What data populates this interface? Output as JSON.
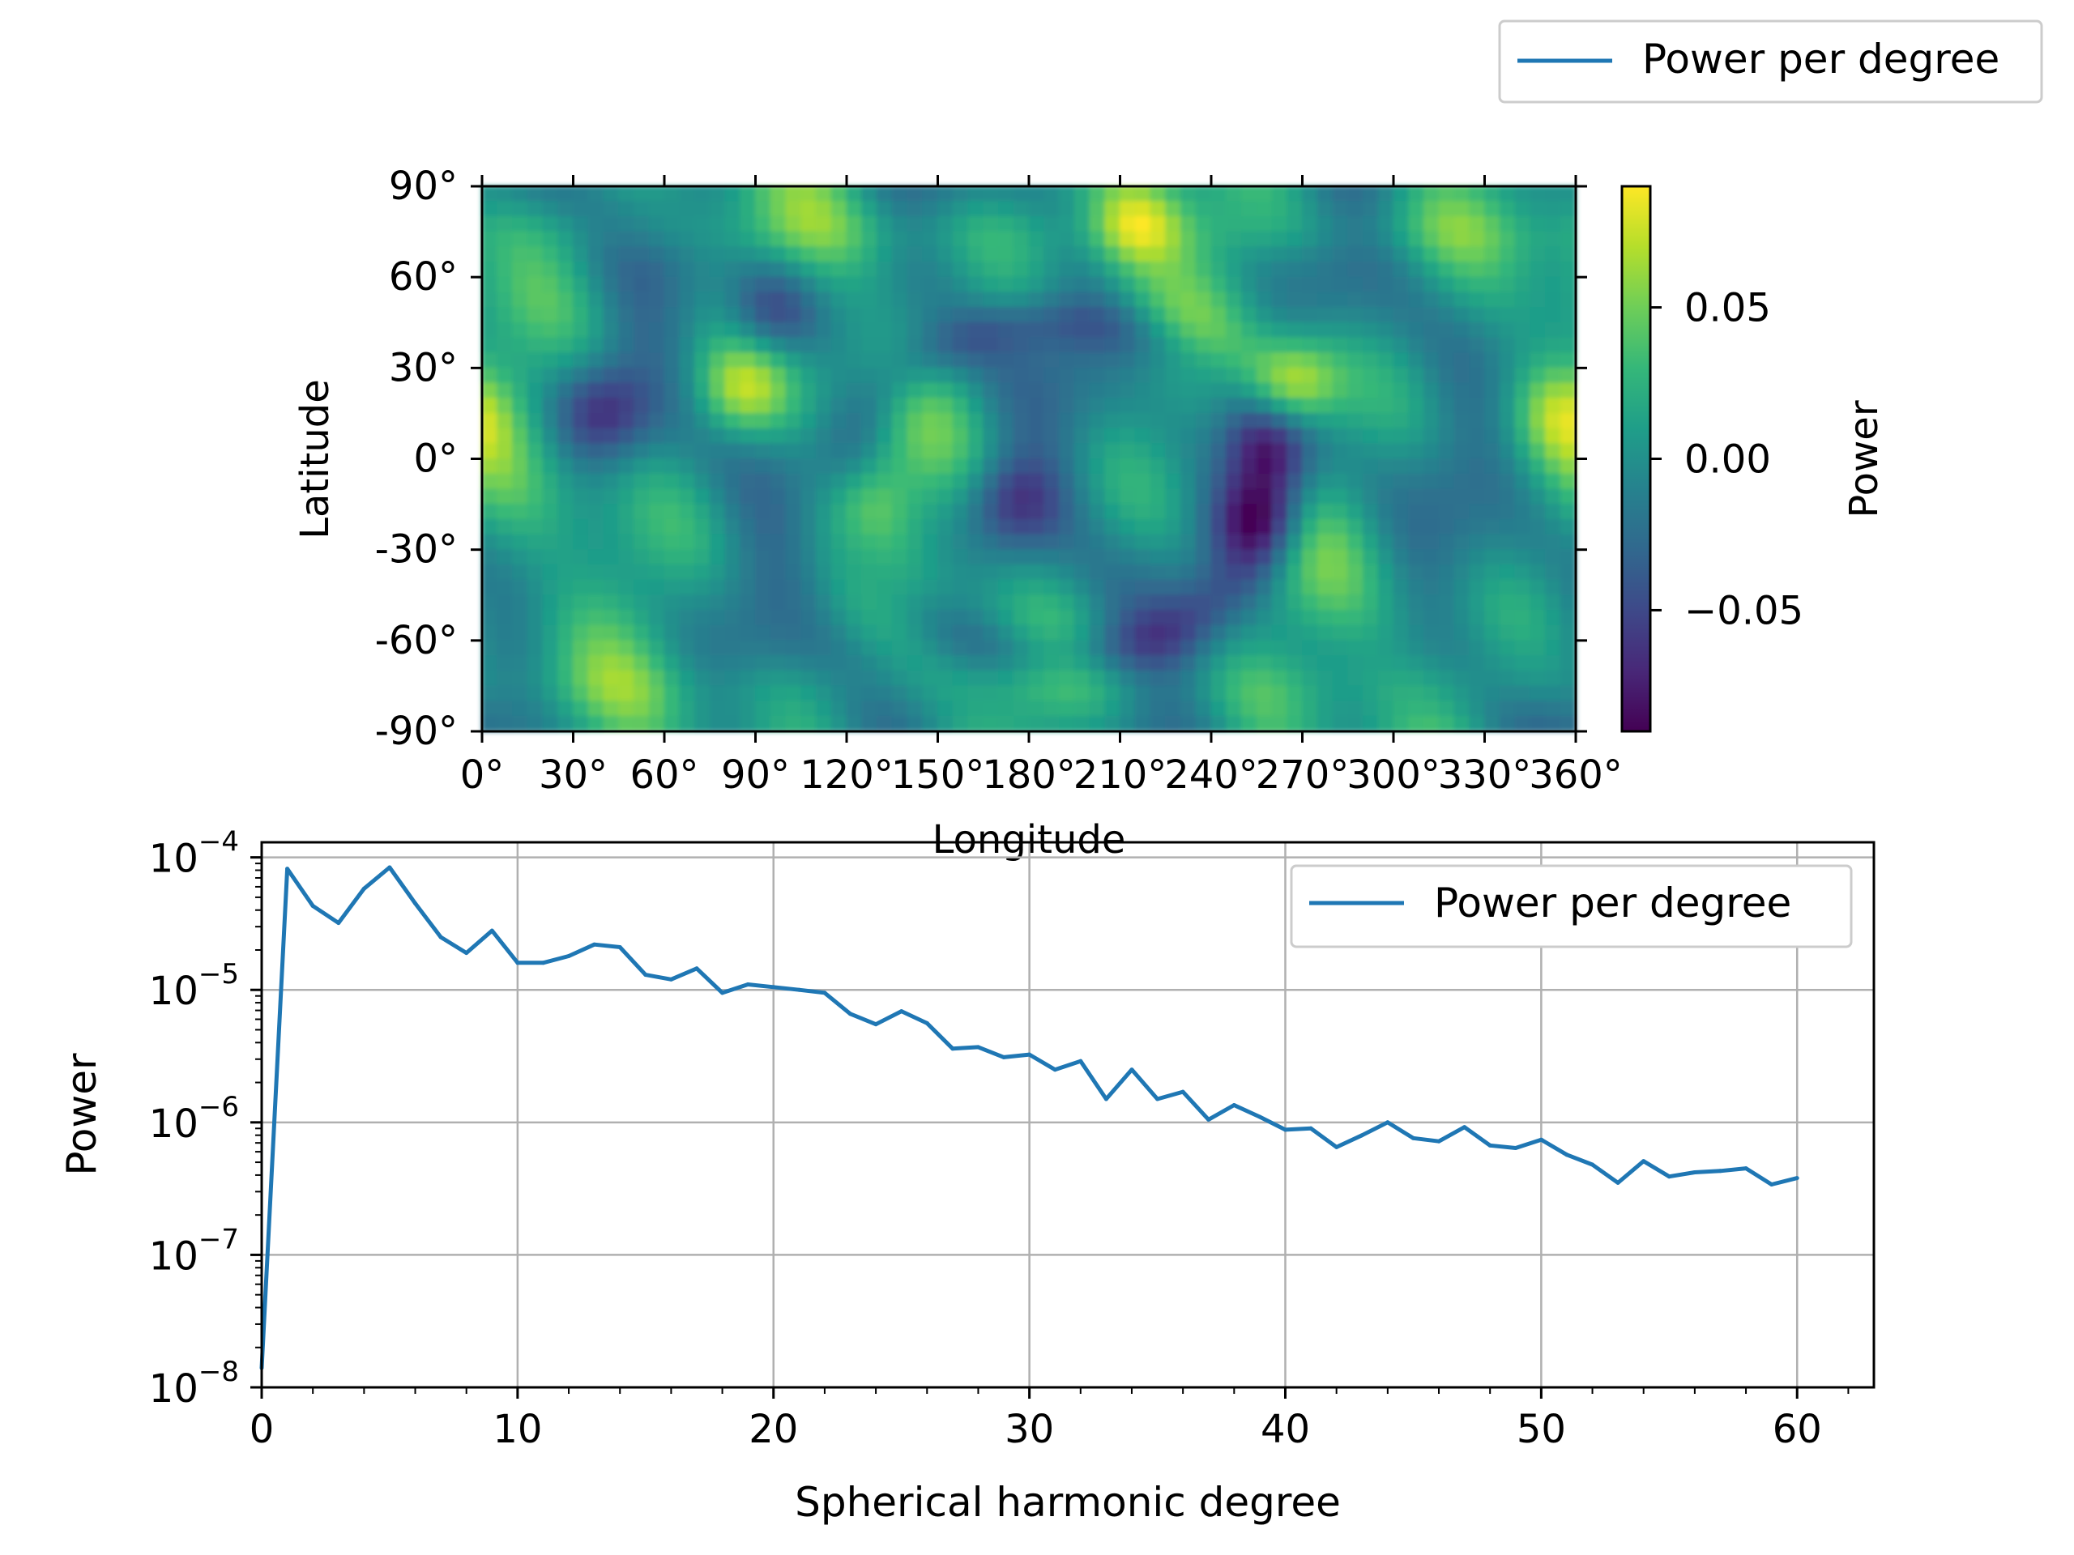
{
  "colors": {
    "series": "#1f77b4",
    "grid": "#b0b0b0",
    "legend_border": "#cccccc",
    "viridis": [
      "#440154",
      "#482878",
      "#3e4989",
      "#31688e",
      "#26828e",
      "#1f9e89",
      "#35b779",
      "#6ece58",
      "#b5de2b",
      "#fde725"
    ]
  },
  "chart_data": [
    {
      "type": "heatmap",
      "xlabel": "Longitude",
      "ylabel": "Latitude",
      "xlim": [
        0,
        360
      ],
      "ylim": [
        -90,
        90
      ],
      "x_ticks": [
        0,
        30,
        60,
        90,
        120,
        150,
        180,
        210,
        240,
        270,
        300,
        330,
        360
      ],
      "x_tick_labels": [
        "0°",
        "30°",
        "60°",
        "90°",
        "120°",
        "150°",
        "180°",
        "210°",
        "240°",
        "270°",
        "300°",
        "330°",
        "360°"
      ],
      "y_ticks": [
        90,
        60,
        30,
        0,
        -30,
        -60,
        -90
      ],
      "y_tick_labels": [
        "90°",
        "60°",
        "30°",
        "0°",
        "-30°",
        "-60°",
        "-90°"
      ],
      "colorbar": {
        "label": "Power",
        "range": [
          -0.09,
          0.09
        ],
        "ticks": [
          0.05,
          0.0,
          -0.05
        ],
        "tick_labels": [
          "0.05",
          "0.00",
          "−0.05"
        ],
        "colormap": "viridis"
      },
      "features": [
        {
          "lon": 215,
          "lat": 78,
          "value": 0.075
        },
        {
          "lon": 268,
          "lat": 25,
          "value": 0.085
        },
        {
          "lon": 85,
          "lat": 22,
          "value": 0.06
        },
        {
          "lon": 125,
          "lat": -15,
          "value": 0.05
        },
        {
          "lon": 355,
          "lat": 15,
          "value": 0.045
        },
        {
          "lon": 95,
          "lat": 48,
          "value": -0.07
        },
        {
          "lon": 40,
          "lat": 15,
          "value": -0.06
        },
        {
          "lon": 255,
          "lat": -20,
          "value": -0.085
        },
        {
          "lon": 260,
          "lat": 5,
          "value": -0.07
        },
        {
          "lon": 175,
          "lat": -15,
          "value": -0.06
        }
      ],
      "legend": {
        "label": "Power per degree",
        "placement": "top-right of figure"
      }
    },
    {
      "type": "line",
      "xlabel": "Spherical harmonic degree",
      "ylabel": "Power",
      "xlim": [
        0,
        63
      ],
      "ylim": [
        1e-08,
        0.00013
      ],
      "yscale": "log",
      "grid": true,
      "x_ticks": [
        0,
        10,
        20,
        30,
        40,
        50,
        60
      ],
      "y_ticks": [
        1e-08,
        1e-07,
        1e-06,
        1e-05,
        0.0001
      ],
      "y_tick_labels": [
        [
          "10",
          "−8"
        ],
        [
          "10",
          "−7"
        ],
        [
          "10",
          "−6"
        ],
        [
          "10",
          "−5"
        ],
        [
          "10",
          "−4"
        ]
      ],
      "series": [
        {
          "name": "Power per degree",
          "x": [
            0,
            1,
            2,
            3,
            4,
            5,
            6,
            7,
            8,
            9,
            10,
            11,
            12,
            13,
            14,
            15,
            16,
            17,
            18,
            19,
            20,
            21,
            22,
            23,
            24,
            25,
            26,
            27,
            28,
            29,
            30,
            31,
            32,
            33,
            34,
            35,
            36,
            37,
            38,
            39,
            40,
            41,
            42,
            43,
            44,
            45,
            46,
            47,
            48,
            49,
            50,
            51,
            52,
            53,
            54,
            55,
            56,
            57,
            58,
            59,
            60
          ],
          "values": [
            1.4e-08,
            8.2e-05,
            4.3e-05,
            3.2e-05,
            5.8e-05,
            8.4e-05,
            4.5e-05,
            2.5e-05,
            1.9e-05,
            2.8e-05,
            1.6e-05,
            1.6e-05,
            1.8e-05,
            2.2e-05,
            2.1e-05,
            1.3e-05,
            1.2e-05,
            1.45e-05,
            9.5e-06,
            1.1e-05,
            1.05e-05,
            1e-05,
            9.5e-06,
            6.6e-06,
            5.5e-06,
            6.9e-06,
            5.6e-06,
            3.6e-06,
            3.7e-06,
            3.1e-06,
            3.25e-06,
            2.5e-06,
            2.9e-06,
            1.5e-06,
            2.5e-06,
            1.5e-06,
            1.7e-06,
            1.05e-06,
            1.35e-06,
            1.1e-06,
            8.8e-07,
            9e-07,
            6.5e-07,
            8e-07,
            1e-06,
            7.6e-07,
            7.2e-07,
            9.2e-07,
            6.7e-07,
            6.4e-07,
            7.4e-07,
            5.7e-07,
            4.8e-07,
            3.5e-07,
            5.1e-07,
            3.9e-07,
            4.2e-07,
            4.3e-07,
            4.5e-07,
            3.4e-07,
            3.8e-07
          ]
        }
      ],
      "legend": {
        "label": "Power per degree",
        "placement": "top-right"
      }
    }
  ]
}
